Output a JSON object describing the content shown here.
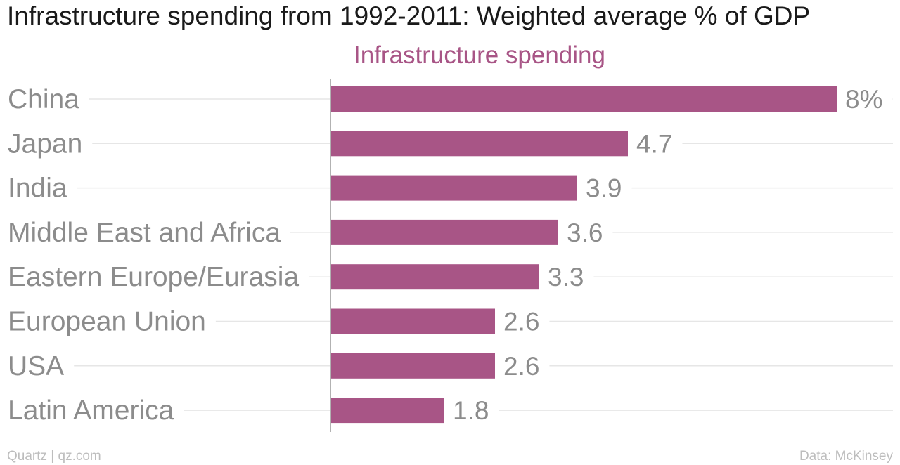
{
  "title": "Infrastructure spending from 1992-2011: Weighted average % of GDP",
  "footer": {
    "left": "Quartz | qz.com",
    "right": "Data: McKinsey"
  },
  "colors": {
    "bar": "#a85586",
    "series_label": "#a85586",
    "category_text": "#8c8c8c",
    "value_text": "#8c8c8c",
    "gridline": "#e6e6e6",
    "axis": "#999999",
    "footer_text": "#bdbdbd"
  },
  "chart_data": {
    "type": "bar",
    "orientation": "horizontal",
    "title": "Infrastructure spending from 1992-2011: Weighted average % of GDP",
    "categories": [
      "China",
      "Japan",
      "India",
      "Middle East and Africa",
      "Eastern Europe/Eurasia",
      "European Union",
      "USA",
      "Latin America"
    ],
    "series": [
      {
        "name": "Infrastructure spending",
        "values": [
          8,
          4.7,
          3.9,
          3.6,
          3.3,
          2.6,
          2.6,
          1.8
        ]
      }
    ],
    "value_labels": [
      "8%",
      "4.7",
      "3.9",
      "3.6",
      "3.3",
      "2.6",
      "2.6",
      "1.8"
    ],
    "unit": "%",
    "xlim": [
      0,
      8
    ],
    "grid": true,
    "legend": "top-center"
  }
}
